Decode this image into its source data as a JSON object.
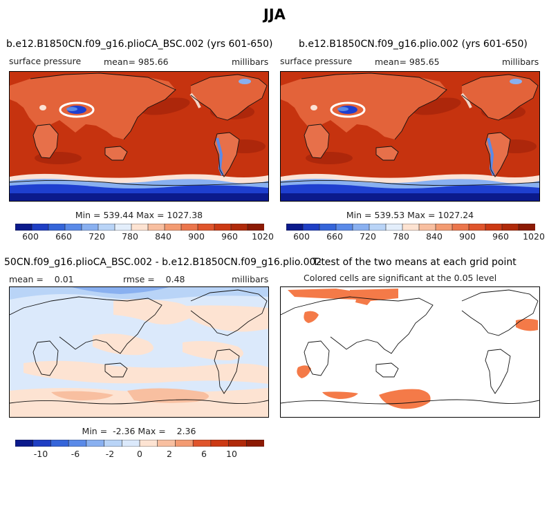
{
  "page_title": "JJA",
  "chart_data": [
    {
      "type": "heatmap",
      "title": "b.e12.B1850CN.f09_g16.plioCA_BSC.002 (yrs 601-650)",
      "variable": "surface pressure",
      "mean_text": "mean= 985.66",
      "units": "millibars",
      "minmax_text": "Min = 539.44 Max = 1027.38",
      "colorbar_ticks": [
        "600",
        "660",
        "720",
        "780",
        "840",
        "900",
        "960",
        "1020"
      ],
      "colorbar_colors": [
        "#0b1a8c",
        "#1f3fc4",
        "#3565d9",
        "#5a8ae8",
        "#89b0f0",
        "#b9d4f7",
        "#e3eefb",
        "#fde3d2",
        "#f8bfa0",
        "#f39b72",
        "#eb764c",
        "#e0552c",
        "#cc3a14",
        "#b02a0a",
        "#8c1a04"
      ],
      "data_range": [
        539.44,
        1027.38
      ]
    },
    {
      "type": "heatmap",
      "title": "b.e12.B1850CN.f09_g16.plio.002 (yrs 601-650)",
      "variable": "surface pressure",
      "mean_text": "mean= 985.65",
      "units": "millibars",
      "minmax_text": "Min = 539.53 Max = 1027.24",
      "colorbar_ticks": [
        "600",
        "660",
        "720",
        "780",
        "840",
        "900",
        "960",
        "1020"
      ],
      "colorbar_colors": [
        "#0b1a8c",
        "#1f3fc4",
        "#3565d9",
        "#5a8ae8",
        "#89b0f0",
        "#b9d4f7",
        "#e3eefb",
        "#fde3d2",
        "#f8bfa0",
        "#f39b72",
        "#eb764c",
        "#e0552c",
        "#cc3a14",
        "#b02a0a",
        "#8c1a04"
      ],
      "data_range": [
        539.53,
        1027.24
      ]
    },
    {
      "type": "heatmap",
      "title": "50CN.f09_g16.plioCA_BSC.002 - b.e12.B1850CN.f09_g16.plio.002",
      "mean_text": "mean =    0.01",
      "rmse_text": "rmse =    0.48",
      "units": "millibars",
      "minmax_text": "Min =  -2.36 Max =    2.36",
      "colorbar_ticks": [
        "-10",
        "-6",
        "-2",
        "0",
        "2",
        "6",
        "10"
      ],
      "colorbar_colors": [
        "#0b1a8c",
        "#1f3fc4",
        "#3565d9",
        "#5a8ae8",
        "#89b0f0",
        "#b9d4f7",
        "#dbe9fb",
        "#fde3d2",
        "#f8bfa0",
        "#f39b72",
        "#e0552c",
        "#cc3a14",
        "#b02a0a",
        "#8c1a04"
      ],
      "data_range": [
        -2.36,
        2.36
      ]
    },
    {
      "type": "heatmap",
      "title": "T-test of the two means at each grid point",
      "subtitle": "Colored cells are significant at the 0.05 level",
      "highlight_color": "#f47a48"
    }
  ]
}
